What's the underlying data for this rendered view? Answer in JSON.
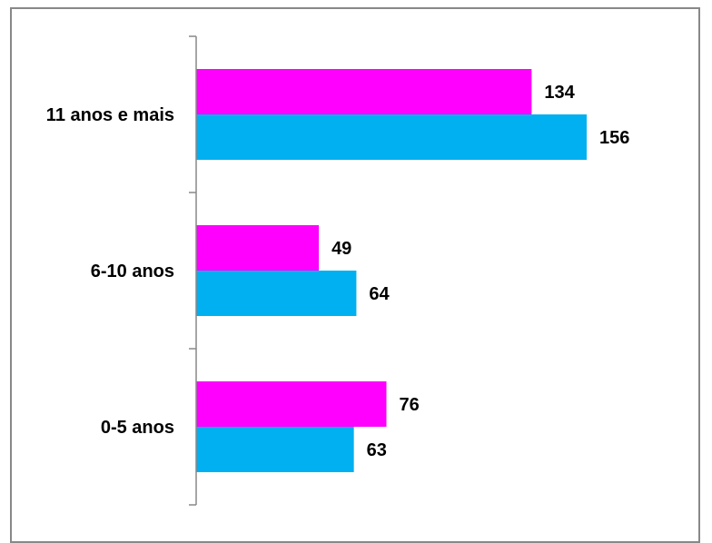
{
  "chart_data": {
    "type": "bar",
    "orientation": "horizontal",
    "categories": [
      "0-5 anos",
      "6-10 anos",
      "11 anos e mais"
    ],
    "series": [
      {
        "color": "#FF00FF",
        "values": [
          76,
          49,
          134
        ]
      },
      {
        "color": "#00B0F0",
        "values": [
          63,
          64,
          156
        ]
      }
    ],
    "xlim": [
      0,
      180
    ],
    "grid": false,
    "legend": "none",
    "title": "",
    "xlabel": "",
    "ylabel": ""
  }
}
